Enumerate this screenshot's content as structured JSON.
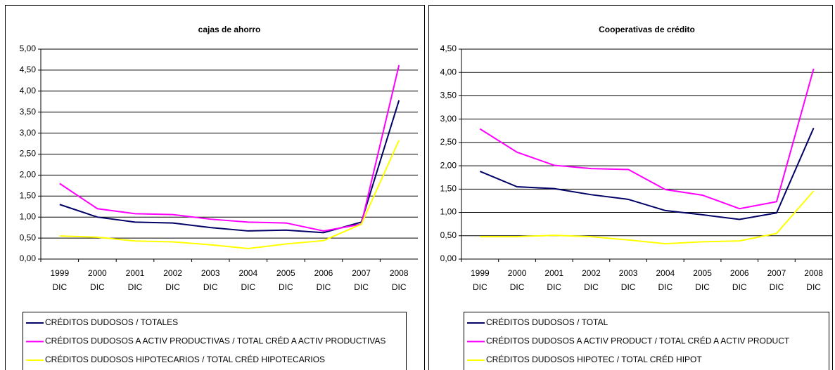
{
  "chart_data": [
    {
      "type": "line",
      "title": "cajas de ahorro",
      "categories": [
        "1999 DIC",
        "2000 DIC",
        "2001 DIC",
        "2002 DIC",
        "2003 DIC",
        "2004 DIC",
        "2005 DIC",
        "2006 DIC",
        "2007 DIC",
        "2008 DIC"
      ],
      "series": [
        {
          "name": "CRÉDITOS DUDOSOS / TOTALES",
          "color": "#000066",
          "values": [
            1.3,
            1.0,
            0.88,
            0.86,
            0.75,
            0.67,
            0.69,
            0.63,
            0.88,
            3.78
          ]
        },
        {
          "name": "CRÉDITOS DUDOSOS A ACTIV PRODUCTIVAS / TOTAL CRÉD A ACTIV PRODUCTIVAS",
          "color": "#ff00ff",
          "values": [
            1.8,
            1.2,
            1.08,
            1.06,
            0.95,
            0.88,
            0.86,
            0.67,
            0.83,
            4.62
          ]
        },
        {
          "name": "CRÉDITOS DUDOSOS HIPOTECARIOS / TOTAL CRÉD HIPOTECARIOS",
          "color": "#ffff00",
          "values": [
            0.55,
            0.52,
            0.43,
            0.41,
            0.34,
            0.25,
            0.36,
            0.44,
            0.83,
            2.83
          ]
        }
      ],
      "ylim": [
        0,
        5
      ],
      "yticks": [
        {
          "value": 0,
          "label": "0,00"
        },
        {
          "value": 0.5,
          "label": "0,50"
        },
        {
          "value": 1,
          "label": "1,00"
        },
        {
          "value": 1.5,
          "label": "1,50"
        },
        {
          "value": 2,
          "label": "2,00"
        },
        {
          "value": 2.5,
          "label": "2,50"
        },
        {
          "value": 3,
          "label": "3,00"
        },
        {
          "value": 3.5,
          "label": "3,50"
        },
        {
          "value": 4,
          "label": "4,00"
        },
        {
          "value": 4.5,
          "label": "4,50"
        },
        {
          "value": 5,
          "label": "5,00"
        }
      ],
      "grid": true,
      "legend": "bottom"
    },
    {
      "type": "line",
      "title": "Cooperativas de crédito",
      "categories": [
        "1999 DIC",
        "2000 DIC",
        "2001 DIC",
        "2002 DIC",
        "2003 DIC",
        "2004 DIC",
        "2005 DIC",
        "2006 DIC",
        "2007 DIC",
        "2008 DIC"
      ],
      "series": [
        {
          "name": "CRÉDITOS DUDOSOS / TOTAL",
          "color": "#000066",
          "values": [
            1.88,
            1.55,
            1.51,
            1.38,
            1.28,
            1.04,
            0.95,
            0.85,
            0.99,
            2.81
          ]
        },
        {
          "name": "CRÉDITOS DUDOSOS A ACTIV PRODUCT / TOTAL CRÉD A ACTIV PRODUCT",
          "color": "#ff00ff",
          "values": [
            2.79,
            2.29,
            2.01,
            1.94,
            1.92,
            1.49,
            1.37,
            1.08,
            1.23,
            4.08
          ]
        },
        {
          "name": "CRÉDITOS DUDOSOS HIPOTEC / TOTAL CRÉD HIPOT",
          "color": "#ffff00",
          "values": [
            0.48,
            0.48,
            0.51,
            0.48,
            0.41,
            0.33,
            0.37,
            0.39,
            0.55,
            1.46
          ]
        }
      ],
      "ylim": [
        0,
        4.5
      ],
      "yticks": [
        {
          "value": 0,
          "label": "0,00"
        },
        {
          "value": 0.5,
          "label": "0,50"
        },
        {
          "value": 1,
          "label": "1,00"
        },
        {
          "value": 1.5,
          "label": "1,50"
        },
        {
          "value": 2,
          "label": "2,00"
        },
        {
          "value": 2.5,
          "label": "2,50"
        },
        {
          "value": 3,
          "label": "3,00"
        },
        {
          "value": 3.5,
          "label": "3,50"
        },
        {
          "value": 4,
          "label": "4,00"
        },
        {
          "value": 4.5,
          "label": "4,50"
        }
      ],
      "grid": true,
      "legend": "bottom"
    }
  ]
}
